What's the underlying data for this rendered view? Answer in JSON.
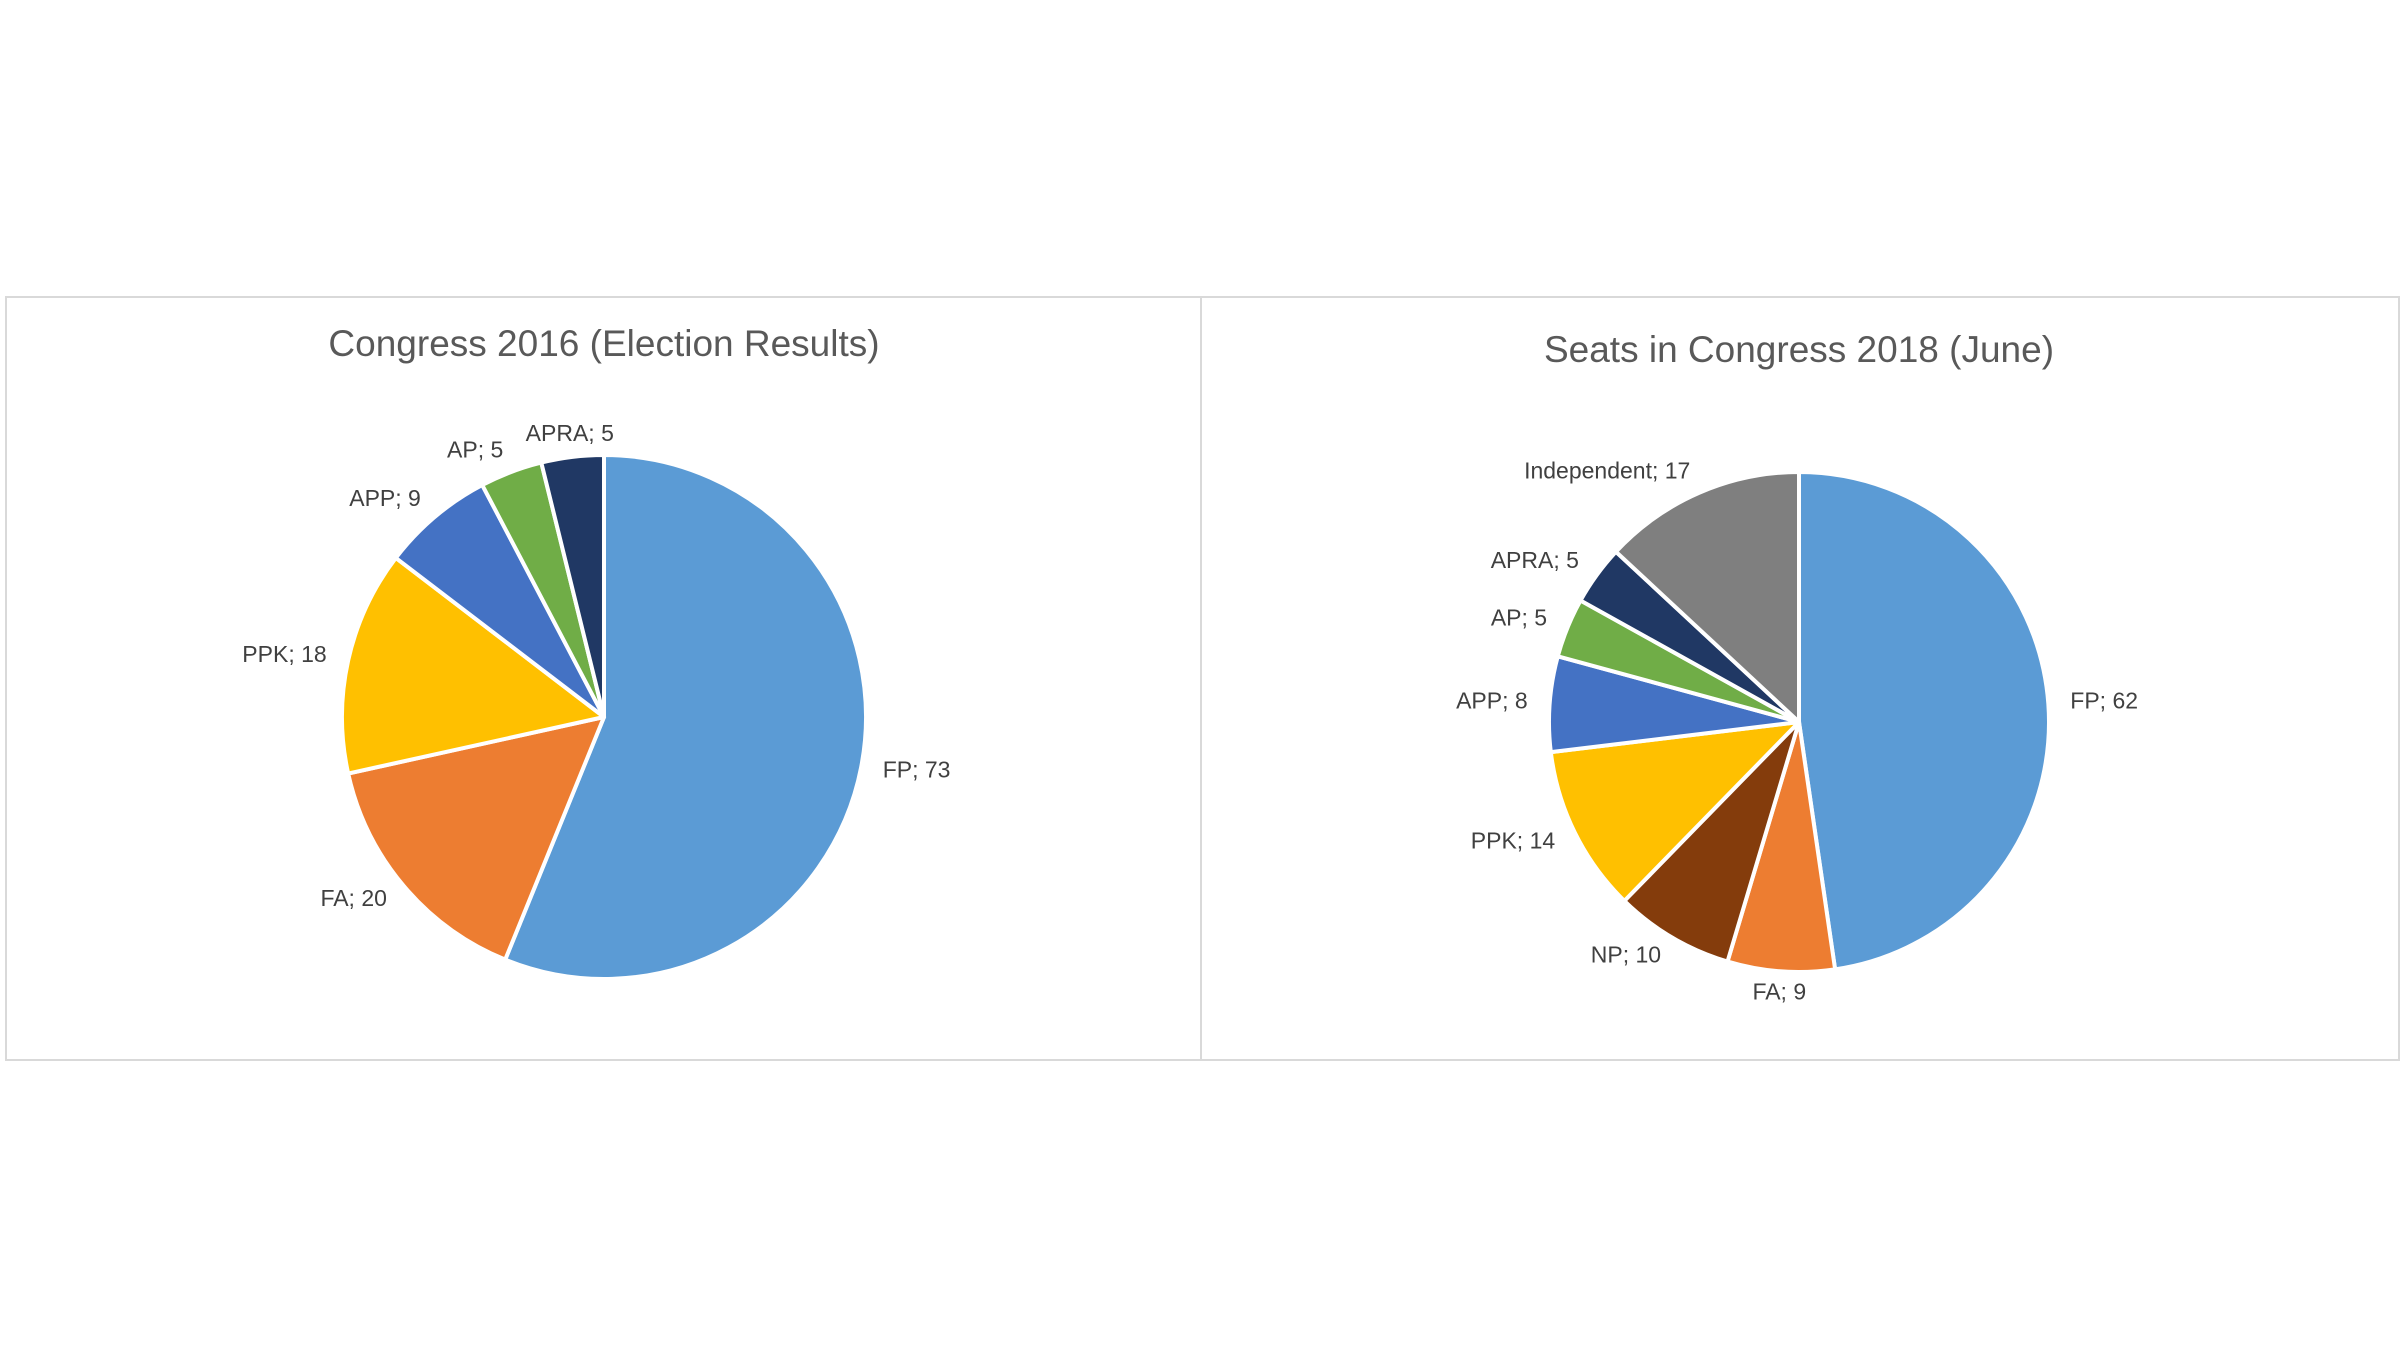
{
  "chart_data": [
    {
      "type": "pie",
      "title": "Congress 2016 (Election Results)",
      "values": [
        73,
        20,
        18,
        9,
        5,
        5
      ],
      "value_labels": [
        "FP; 73",
        "FA; 20",
        "PPK; 18",
        "APP; 9",
        "AP; 5",
        "APRA; 5"
      ],
      "colors": [
        "#5b9bd5",
        "#ed7d31",
        "#ffc000",
        "#4472c4",
        "#70ad47",
        "#203864"
      ]
    },
    {
      "type": "pie",
      "title": "Seats in Congress 2018 (June)",
      "values": [
        62,
        9,
        10,
        14,
        8,
        5,
        5,
        17
      ],
      "value_labels": [
        "FP; 62",
        "FA; 9",
        "NP; 10",
        "PPK; 14",
        "APP; 8",
        "AP; 5",
        "APRA; 5",
        "Independent; 17"
      ],
      "colors": [
        "#5b9bd5",
        "#ed7d31",
        "#843c0c",
        "#ffc000",
        "#4472c4",
        "#70ad47",
        "#203864",
        "#7f7f7f"
      ]
    }
  ]
}
